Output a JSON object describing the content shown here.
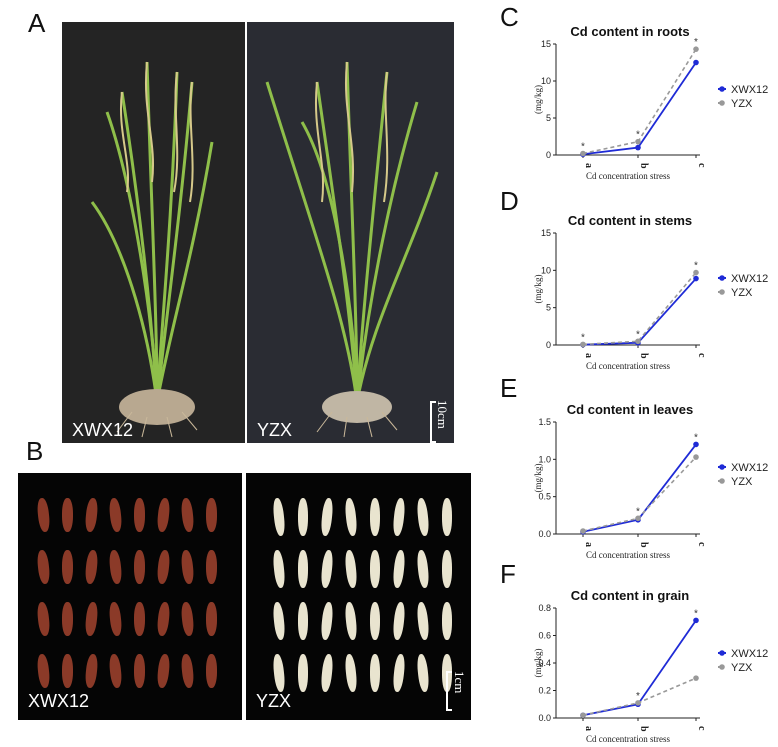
{
  "panels": {
    "A": {
      "letter": "A",
      "left_label": "XWX12",
      "right_label": "YZX",
      "scale": "10cm"
    },
    "B": {
      "letter": "B",
      "left_label": "XWX12",
      "right_label": "YZX",
      "scale": "1cm"
    },
    "C": {
      "letter": "C"
    },
    "D": {
      "letter": "D"
    },
    "E": {
      "letter": "E"
    },
    "F": {
      "letter": "F"
    }
  },
  "colors": {
    "xwx12": "#1f2bd6",
    "yzx": "#999999",
    "plant_green": "#8fbf4a",
    "grain_red": "#8b3a28",
    "grain_white": "#e9e4cf"
  },
  "chart_data": [
    {
      "type": "line",
      "title": "Cd content in roots",
      "ylabel": "(mg/kg)",
      "xlabel": "Cd concentration stress",
      "categories": [
        "a",
        "b",
        "c"
      ],
      "ylim": [
        0,
        15
      ],
      "yticks": [
        "0",
        "5",
        "10",
        "15"
      ],
      "series": [
        {
          "name": "XWX12",
          "values": [
            0.1,
            1.0,
            12.5
          ]
        },
        {
          "name": "YZX",
          "values": [
            0.2,
            1.8,
            14.3
          ]
        }
      ],
      "annotations": [
        "*",
        "*",
        "*"
      ]
    },
    {
      "type": "line",
      "title": "Cd content in stems",
      "ylabel": "(mg/kg)",
      "xlabel": "Cd concentration stress",
      "categories": [
        "a",
        "b",
        "c"
      ],
      "ylim": [
        0,
        15
      ],
      "yticks": [
        "0",
        "5",
        "10",
        "15"
      ],
      "series": [
        {
          "name": "XWX12",
          "values": [
            0.05,
            0.3,
            8.9
          ]
        },
        {
          "name": "YZX",
          "values": [
            0.08,
            0.5,
            9.7
          ]
        }
      ],
      "annotations": [
        "*",
        "*",
        "*"
      ]
    },
    {
      "type": "line",
      "title": "Cd content in leaves",
      "ylabel": "(mg/kg)",
      "xlabel": "Cd concentration stress",
      "categories": [
        "a",
        "b",
        "c"
      ],
      "ylim": [
        0,
        1.5
      ],
      "yticks": [
        "0.0",
        "0.5",
        "1.0",
        "1.5"
      ],
      "series": [
        {
          "name": "XWX12",
          "values": [
            0.03,
            0.19,
            1.2
          ]
        },
        {
          "name": "YZX",
          "values": [
            0.04,
            0.21,
            1.03
          ]
        }
      ],
      "annotations": [
        "",
        "*",
        "*"
      ]
    },
    {
      "type": "line",
      "title": "Cd content in grain",
      "ylabel": "(mg/kg)",
      "xlabel": "Cd concentration stress",
      "categories": [
        "a",
        "b",
        "c"
      ],
      "ylim": [
        0,
        0.8
      ],
      "yticks": [
        "0.0",
        "0.2",
        "0.4",
        "0.6",
        "0.8"
      ],
      "series": [
        {
          "name": "XWX12",
          "values": [
            0.02,
            0.1,
            0.71
          ]
        },
        {
          "name": "YZX",
          "values": [
            0.02,
            0.11,
            0.29
          ]
        }
      ],
      "annotations": [
        "",
        "*",
        "*"
      ]
    }
  ]
}
